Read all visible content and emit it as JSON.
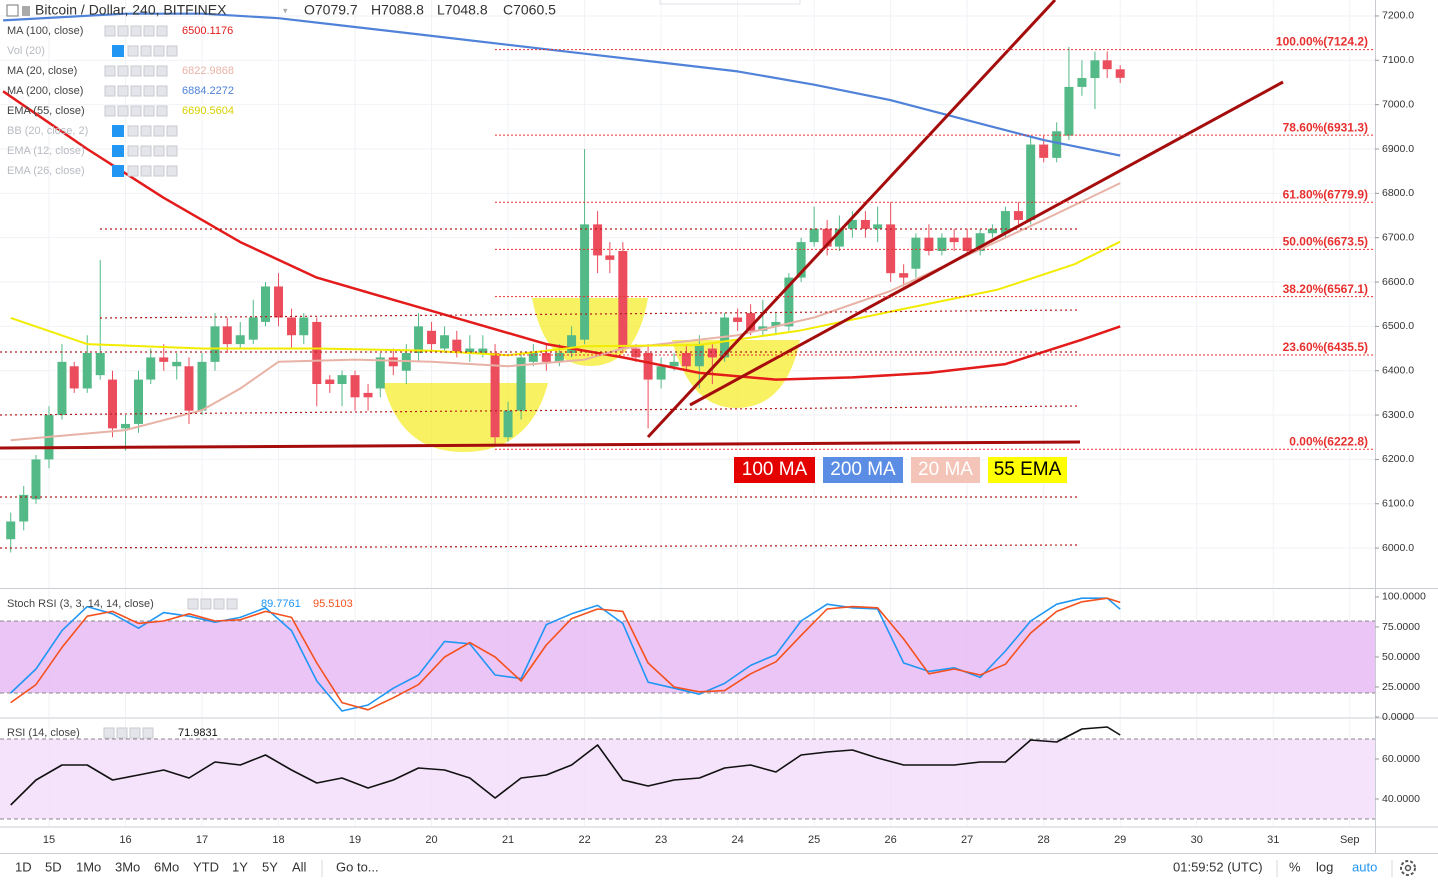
{
  "chart_data": [
    {
      "type": "candlestick",
      "title": "Bitcoin / Dollar, 240, BITFINEX",
      "ohlc_legend": [
        "O7079.7",
        "H7088.8",
        "L7048.8",
        "C7060.5"
      ],
      "up_color": "#53b987",
      "down_color": "#eb4d5c",
      "grid": true,
      "xlim": [
        14.36,
        32.33
      ],
      "xticks": [
        15,
        16,
        17,
        18,
        19,
        20,
        21,
        22,
        23,
        24,
        25,
        26,
        27,
        28,
        29,
        30,
        31,
        {
          "value": 32,
          "label": "Sep"
        }
      ],
      "ylim": [
        5910,
        7236
      ],
      "yticks": [
        {
          "value": 6000,
          "label": "6000.0"
        },
        {
          "value": 6100,
          "label": "6100.0"
        },
        {
          "value": 6200,
          "label": "6200.0"
        },
        {
          "value": 6300,
          "label": "6300.0"
        },
        {
          "value": 6400,
          "label": "6400.0"
        },
        {
          "value": 6500,
          "label": "6500.0"
        },
        {
          "value": 6600,
          "label": "6600.0"
        },
        {
          "value": 6700,
          "label": "6700.0"
        },
        {
          "value": 6800,
          "label": "6800.0"
        },
        {
          "value": 6900,
          "label": "6900.0"
        },
        {
          "value": 7000,
          "label": "7000.0"
        },
        {
          "value": 7100,
          "label": "7100.0"
        },
        {
          "value": 7200,
          "label": "7200.0"
        }
      ],
      "x": [
        14.5,
        14.67,
        14.83,
        15,
        15.17,
        15.33,
        15.5,
        15.67,
        15.83,
        16,
        16.17,
        16.33,
        16.5,
        16.67,
        16.83,
        17,
        17.17,
        17.33,
        17.5,
        17.67,
        17.83,
        18,
        18.17,
        18.33,
        18.5,
        18.67,
        18.83,
        19,
        19.17,
        19.33,
        19.5,
        19.67,
        19.83,
        20,
        20.17,
        20.33,
        20.5,
        20.67,
        20.83,
        21,
        21.17,
        21.33,
        21.5,
        21.67,
        21.83,
        22,
        22.17,
        22.33,
        22.5,
        22.67,
        22.83,
        23,
        23.17,
        23.33,
        23.5,
        23.67,
        23.83,
        24,
        24.17,
        24.33,
        24.5,
        24.67,
        24.83,
        25,
        25.17,
        25.33,
        25.5,
        25.67,
        25.83,
        26,
        26.17,
        26.33,
        26.5,
        26.67,
        26.83,
        27,
        27.17,
        27.33,
        27.5,
        27.67,
        27.83,
        28,
        28.17,
        28.33,
        28.5,
        28.67,
        28.83,
        29
      ],
      "open": [
        6020,
        6060,
        6110,
        6200,
        6300,
        6410,
        6360,
        6390,
        6380,
        6270,
        6280,
        6380,
        6430,
        6410,
        6410,
        6310,
        6420,
        6500,
        6460,
        6470,
        6510,
        6590,
        6520,
        6480,
        6510,
        6380,
        6370,
        6390,
        6350,
        6360,
        6430,
        6400,
        6440,
        6490,
        6450,
        6470,
        6440,
        6440,
        6440,
        6250,
        6310,
        6420,
        6440,
        6420,
        6440,
        6470,
        6730,
        6660,
        6670,
        6450,
        6440,
        6380,
        6410,
        6440,
        6410,
        6450,
        6430,
        6520,
        6530,
        6490,
        6500,
        6500,
        6610,
        6690,
        6720,
        6680,
        6720,
        6740,
        6720,
        6730,
        6620,
        6630,
        6700,
        6670,
        6700,
        6700,
        6670,
        6710,
        6710,
        6760,
        6740,
        6910,
        6880,
        6930,
        7040,
        7060,
        7100,
        7079.7
      ],
      "high": [
        6080,
        6140,
        6210,
        6320,
        6460,
        6420,
        6480,
        6650,
        6400,
        6300,
        6400,
        6450,
        6460,
        6440,
        6430,
        6440,
        6530,
        6520,
        6510,
        6560,
        6600,
        6620,
        6540,
        6530,
        6520,
        6390,
        6400,
        6400,
        6370,
        6440,
        6450,
        6460,
        6530,
        6510,
        6500,
        6490,
        6480,
        6480,
        6460,
        6330,
        6440,
        6460,
        6460,
        6460,
        6500,
        6900,
        6760,
        6690,
        6690,
        6460,
        6460,
        6430,
        6440,
        6460,
        6480,
        6460,
        6530,
        6540,
        6550,
        6560,
        6530,
        6620,
        6700,
        6770,
        6740,
        6750,
        6760,
        6760,
        6770,
        6780,
        6640,
        6710,
        6730,
        6710,
        6720,
        6720,
        6720,
        6730,
        6770,
        6780,
        6930,
        6930,
        6960,
        7130,
        7100,
        7120,
        7120,
        7088.8
      ],
      "low": [
        5990,
        6040,
        6100,
        6180,
        6290,
        6350,
        6350,
        6380,
        6250,
        6220,
        6260,
        6370,
        6400,
        6380,
        6280,
        6300,
        6400,
        6440,
        6450,
        6460,
        6500,
        6500,
        6450,
        6460,
        6320,
        6350,
        6320,
        6310,
        6310,
        6340,
        6390,
        6370,
        6420,
        6440,
        6440,
        6430,
        6420,
        6430,
        6230,
        6240,
        6290,
        6410,
        6400,
        6410,
        6430,
        6460,
        6620,
        6620,
        6440,
        6420,
        6270,
        6360,
        6400,
        6400,
        6360,
        6370,
        6420,
        6490,
        6480,
        6480,
        6480,
        6490,
        6600,
        6680,
        6660,
        6670,
        6700,
        6700,
        6690,
        6600,
        6590,
        6610,
        6660,
        6660,
        6670,
        6660,
        6660,
        6700,
        6700,
        6730,
        6730,
        6870,
        6870,
        6920,
        7020,
        6990,
        7060,
        7048.8
      ],
      "close": [
        6060,
        6120,
        6200,
        6300,
        6420,
        6360,
        6440,
        6440,
        6270,
        6280,
        6380,
        6430,
        6420,
        6420,
        6310,
        6420,
        6500,
        6460,
        6480,
        6520,
        6590,
        6520,
        6480,
        6520,
        6370,
        6370,
        6390,
        6340,
        6340,
        6430,
        6410,
        6440,
        6500,
        6460,
        6480,
        6440,
        6450,
        6450,
        6250,
        6310,
        6430,
        6440,
        6420,
        6440,
        6480,
        6730,
        6660,
        6650,
        6450,
        6430,
        6380,
        6410,
        6420,
        6410,
        6460,
        6430,
        6520,
        6510,
        6490,
        6500,
        6510,
        6610,
        6690,
        6720,
        6680,
        6720,
        6740,
        6720,
        6730,
        6620,
        6610,
        6700,
        6670,
        6700,
        6690,
        6670,
        6710,
        6720,
        6760,
        6740,
        6910,
        6880,
        6940,
        7040,
        7060,
        7100,
        7080,
        7060.5
      ],
      "series": [
        {
          "name": "MA (100, close)",
          "color": "#e31b1b",
          "last": 6500.1176,
          "x": [
            14.4,
            15.5,
            16.5,
            17.5,
            18.5,
            19.5,
            20.5,
            21.5,
            22.5,
            23.5,
            24.5,
            25.5,
            26.5,
            27.5,
            28.5,
            29
          ],
          "values": [
            7030,
            6900,
            6790,
            6690,
            6610,
            6560,
            6510,
            6460,
            6430,
            6395,
            6380,
            6385,
            6395,
            6415,
            6470,
            6500
          ]
        },
        {
          "name": "MA (20, close)",
          "color": "#e8b3a6",
          "last": 6822.9868,
          "x": [
            14.5,
            16,
            17,
            17.5,
            18,
            19,
            20,
            21,
            22,
            22.5,
            24,
            25,
            26,
            27,
            28,
            29
          ],
          "values": [
            6243,
            6266,
            6311,
            6360,
            6420,
            6425,
            6420,
            6410,
            6425,
            6450,
            6480,
            6520,
            6580,
            6660,
            6740,
            6823
          ]
        },
        {
          "name": "MA (200, close)",
          "color": "#4f82d8",
          "last": 6884.2272,
          "x": [
            14.4,
            16,
            17,
            18,
            19,
            20,
            21,
            22,
            23,
            24,
            25,
            26,
            27,
            28,
            29
          ],
          "values": [
            7190,
            7205,
            7205,
            7195,
            7175,
            7155,
            7135,
            7115,
            7095,
            7075,
            7045,
            7010,
            6965,
            6920,
            6885
          ]
        },
        {
          "name": "EMA (55, close)",
          "color": "#f2ec00",
          "last": 6690.5604,
          "x": [
            14.5,
            15.5,
            17,
            18.5,
            20,
            21,
            22,
            23.5,
            24.8,
            26.1,
            27.4,
            28.4,
            29
          ],
          "values": [
            6519,
            6460,
            6450,
            6450,
            6445,
            6435,
            6455,
            6458,
            6490,
            6537,
            6583,
            6640,
            6691
          ]
        }
      ],
      "hidden_indicators": [
        "Vol (20)",
        "BB (20, close, 2)",
        "EMA (12, close)",
        "EMA (26, close)"
      ],
      "fib_levels": [
        {
          "label": "100.00%(7124.2)",
          "value": 7124.2
        },
        {
          "label": "78.60%(6931.3)",
          "value": 6931.3
        },
        {
          "label": "61.80%(6779.9)",
          "value": 6779.9
        },
        {
          "label": "50.00%(6673.5)",
          "value": 6673.5
        },
        {
          "label": "38.20%(6567.1)",
          "value": 6567.1
        },
        {
          "label": "23.60%(6435.5)",
          "value": 6435.5
        },
        {
          "label": "0.00%(6222.8)",
          "value": 6222.8
        }
      ],
      "fib_color": "#e8302f",
      "labels": [
        {
          "text": "100 MA",
          "background": "#e50000",
          "color": "#ffffff"
        },
        {
          "text": "200 MA",
          "background": "#5b8de4",
          "color": "#ffffff"
        },
        {
          "text": "20 MA",
          "background": "#f4c4b8",
          "color": "#ffffff"
        },
        {
          "text": "55 EMA",
          "background": "#ffff00",
          "color": "#000000"
        }
      ]
    },
    {
      "type": "line",
      "title": "Stoch RSI (3, 3, 14, 14, close)",
      "ylim": [
        0,
        105.8
      ],
      "yticks": [
        {
          "value": 0,
          "label": "0.0000"
        },
        {
          "value": 25,
          "label": "25.0000"
        },
        {
          "value": 50,
          "label": "50.0000"
        },
        {
          "value": 75,
          "label": "75.0000"
        },
        {
          "value": 100,
          "label": "100.0000"
        }
      ],
      "bands": [
        20,
        80
      ],
      "band_color": "#e7b7f5",
      "x": [
        14.5,
        14.83,
        15.17,
        15.5,
        15.83,
        16.17,
        16.5,
        16.83,
        17.17,
        17.5,
        17.83,
        18.17,
        18.5,
        18.83,
        19.17,
        19.5,
        19.83,
        20.17,
        20.5,
        20.83,
        21.17,
        21.5,
        21.83,
        22.17,
        22.5,
        22.83,
        23.17,
        23.5,
        23.83,
        24.17,
        24.5,
        24.83,
        25.17,
        25.5,
        25.83,
        26.17,
        26.5,
        26.83,
        27.17,
        27.5,
        27.83,
        28.17,
        28.5,
        28.83,
        29
      ],
      "series": [
        {
          "color": "#2196f3",
          "last": 89.7761,
          "values": [
            20,
            40,
            72,
            92,
            86,
            74,
            87,
            84,
            79,
            83,
            91,
            72,
            30,
            5,
            10,
            24,
            35,
            63,
            61,
            35,
            32,
            77,
            86,
            93,
            78,
            29,
            24,
            19,
            28,
            43,
            52,
            80,
            94,
            91,
            90,
            45,
            38,
            41,
            33,
            55,
            80,
            94,
            99,
            99,
            89.7761
          ]
        },
        {
          "color": "#f4511e",
          "last": 95.5103,
          "values": [
            12,
            27,
            58,
            84,
            88,
            78,
            80,
            86,
            80,
            81,
            88,
            83,
            45,
            12,
            6,
            16,
            27,
            50,
            62,
            50,
            30,
            60,
            82,
            90,
            88,
            45,
            25,
            21,
            22,
            36,
            46,
            68,
            90,
            92,
            91,
            65,
            36,
            40,
            35,
            44,
            70,
            88,
            96,
            99,
            95.5103
          ]
        }
      ]
    },
    {
      "type": "line",
      "title": "RSI (14, close)",
      "ylim": [
        26.5,
        80
      ],
      "yticks": [
        {
          "value": 40,
          "label": "40.0000"
        },
        {
          "value": 60,
          "label": "60.0000"
        }
      ],
      "bands": [
        30,
        70
      ],
      "band_color": "#f3dcfa",
      "x": [
        14.5,
        14.83,
        15.17,
        15.5,
        15.83,
        16.17,
        16.5,
        16.83,
        17.17,
        17.5,
        17.83,
        18.17,
        18.5,
        18.83,
        19.17,
        19.5,
        19.83,
        20.17,
        20.5,
        20.83,
        21.17,
        21.5,
        21.83,
        22.17,
        22.5,
        22.83,
        23.17,
        23.5,
        23.83,
        24.17,
        24.5,
        24.83,
        25.17,
        25.5,
        25.83,
        26.17,
        26.5,
        26.83,
        27.17,
        27.5,
        27.83,
        28.17,
        28.5,
        28.83,
        29
      ],
      "series": [
        {
          "color": "#111111",
          "last": 71.9831,
          "values": [
            37,
            49.5,
            57,
            57,
            49.5,
            52,
            54.5,
            50.5,
            58.5,
            57,
            62,
            54.5,
            48,
            50.5,
            45.5,
            49.5,
            55.5,
            54.5,
            50.5,
            40.5,
            50.5,
            52,
            57,
            67,
            49.5,
            46.5,
            49.5,
            50.5,
            55.5,
            57,
            53.5,
            62,
            63.5,
            64.5,
            60.5,
            57,
            57,
            57,
            58.5,
            58.5,
            69.5,
            68.5,
            75,
            76,
            71.9831
          ]
        }
      ]
    }
  ],
  "toolbar": {
    "ranges": [
      "1D",
      "5D",
      "1Mo",
      "3Mo",
      "6Mo",
      "YTD",
      "1Y",
      "5Y",
      "All"
    ],
    "goto": "Go to...",
    "clock": "01:59:52 (UTC)",
    "percent": "%",
    "log": "log",
    "auto": "auto"
  }
}
